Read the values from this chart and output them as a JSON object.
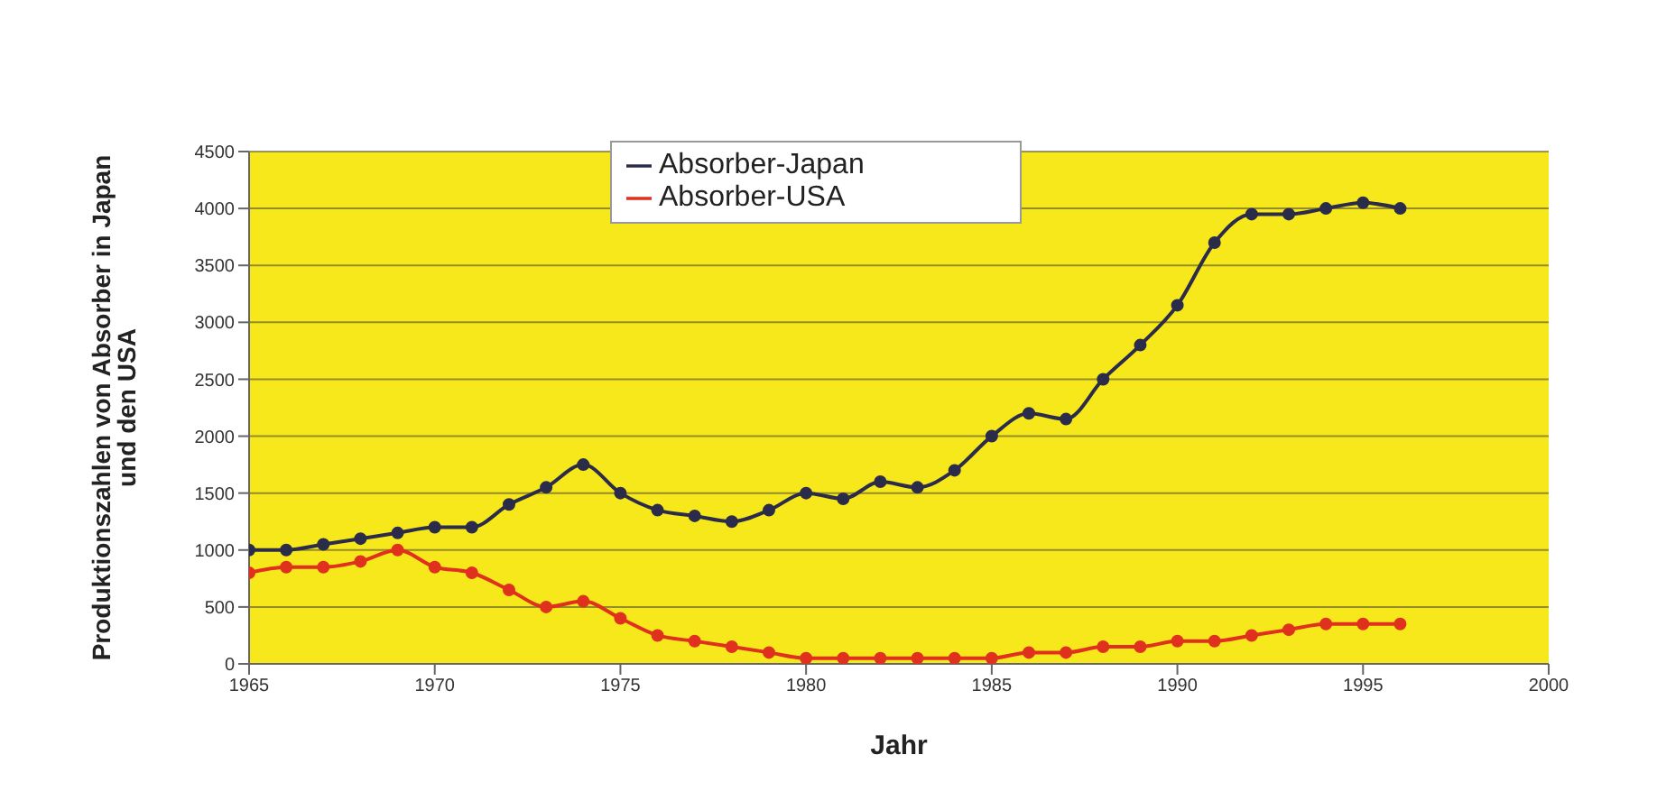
{
  "chart_data": {
    "type": "line",
    "xlabel": "Jahr",
    "ylabel": "Produktionszahlen von Absorber in Japan und den USA",
    "x": [
      1965,
      1966,
      1967,
      1968,
      1969,
      1970,
      1971,
      1972,
      1973,
      1974,
      1975,
      1976,
      1977,
      1978,
      1979,
      1980,
      1981,
      1982,
      1983,
      1984,
      1985,
      1986,
      1987,
      1988,
      1989,
      1990,
      1991,
      1992,
      1993,
      1994,
      1995,
      1996
    ],
    "series": [
      {
        "name": "Absorber-Japan",
        "color": "#2b2b4a",
        "values": [
          1000,
          1000,
          1050,
          1100,
          1150,
          1200,
          1200,
          1400,
          1550,
          1750,
          1500,
          1350,
          1300,
          1250,
          1350,
          1500,
          1450,
          1600,
          1550,
          1700,
          2000,
          2200,
          2150,
          2500,
          2800,
          3150,
          3700,
          3950,
          3950,
          4000,
          4050,
          4000
        ]
      },
      {
        "name": "Absorber-USA",
        "color": "#e0301e",
        "values": [
          800,
          850,
          850,
          900,
          1000,
          850,
          800,
          650,
          500,
          550,
          400,
          250,
          200,
          150,
          100,
          50,
          50,
          50,
          50,
          50,
          50,
          100,
          100,
          150,
          150,
          200,
          200,
          250,
          300,
          350,
          350,
          350
        ]
      }
    ],
    "xlim": [
      1965,
      2000
    ],
    "xticks": [
      1965,
      1970,
      1975,
      1980,
      1985,
      1990,
      1995,
      2000
    ],
    "ylim": [
      0,
      4500
    ],
    "yticks": [
      0,
      500,
      1000,
      1500,
      2000,
      2500,
      3000,
      3500,
      4000,
      4500
    ],
    "grid": "y",
    "legend": "top",
    "marker": "circle",
    "line_style": "solid"
  }
}
